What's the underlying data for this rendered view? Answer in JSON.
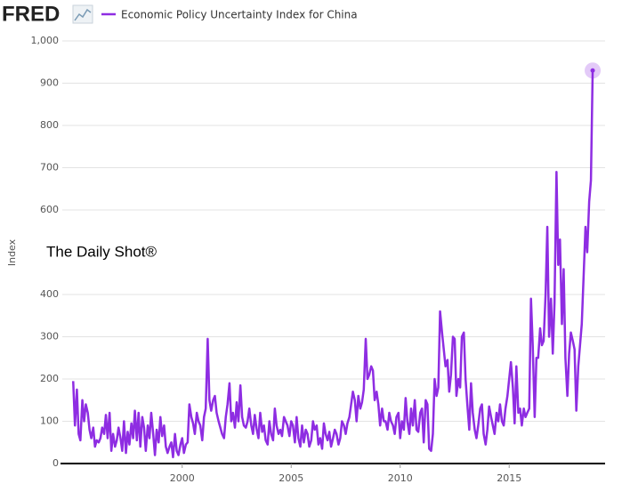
{
  "logo": "FRED",
  "chart_data": {
    "type": "line",
    "watermark": "The Daily Shot®",
    "ylabel": "Index",
    "series": [
      {
        "name": "Economic Policy Uncertainty Index for China",
        "color": "#8e2de2",
        "values": [
          195,
          90,
          175,
          70,
          55,
          150,
          100,
          140,
          120,
          80,
          60,
          85,
          40,
          55,
          50,
          60,
          85,
          70,
          115,
          60,
          120,
          30,
          70,
          40,
          55,
          85,
          60,
          30,
          100,
          25,
          75,
          45,
          95,
          60,
          125,
          55,
          120,
          40,
          110,
          85,
          30,
          90,
          60,
          120,
          70,
          20,
          80,
          50,
          110,
          65,
          90,
          40,
          25,
          40,
          50,
          15,
          70,
          30,
          20,
          45,
          60,
          25,
          45,
          50,
          140,
          110,
          95,
          70,
          120,
          100,
          90,
          55,
          110,
          130,
          295,
          150,
          125,
          150,
          160,
          120,
          100,
          85,
          70,
          60,
          110,
          140,
          190,
          100,
          120,
          85,
          145,
          100,
          185,
          110,
          90,
          85,
          100,
          130,
          90,
          70,
          115,
          80,
          60,
          120,
          75,
          90,
          55,
          45,
          100,
          70,
          55,
          130,
          90,
          70,
          80,
          65,
          110,
          100,
          90,
          65,
          100,
          90,
          50,
          110,
          60,
          40,
          90,
          50,
          80,
          70,
          40,
          55,
          100,
          80,
          90,
          45,
          60,
          35,
          95,
          70,
          55,
          75,
          40,
          60,
          80,
          70,
          45,
          60,
          100,
          90,
          70,
          95,
          110,
          140,
          170,
          150,
          100,
          160,
          130,
          145,
          175,
          295,
          200,
          210,
          230,
          220,
          150,
          170,
          140,
          90,
          130,
          100,
          100,
          80,
          120,
          100,
          90,
          70,
          110,
          120,
          60,
          100,
          80,
          155,
          100,
          70,
          130,
          90,
          150,
          80,
          75,
          120,
          130,
          50,
          150,
          140,
          35,
          30,
          70,
          200,
          160,
          180,
          360,
          310,
          270,
          230,
          245,
          170,
          210,
          300,
          295,
          160,
          200,
          180,
          300,
          310,
          200,
          140,
          80,
          190,
          120,
          80,
          60,
          90,
          130,
          140,
          70,
          45,
          80,
          135,
          110,
          90,
          70,
          120,
          100,
          140,
          100,
          90,
          130,
          160,
          200,
          240,
          180,
          95,
          230,
          120,
          130,
          90,
          130,
          110,
          120,
          130,
          390,
          280,
          110,
          250,
          250,
          320,
          280,
          290,
          400,
          560,
          300,
          390,
          260,
          380,
          690,
          470,
          530,
          330,
          460,
          250,
          160,
          260,
          310,
          290,
          270,
          125,
          230,
          280,
          330,
          450,
          560,
          500,
          620,
          670,
          930
        ]
      }
    ],
    "x": [
      1995,
      1995.08,
      1995.17,
      1995.25,
      1995.33,
      1995.42,
      1995.5,
      1995.58,
      1995.67,
      1995.75,
      1995.83,
      1995.92,
      1996,
      1996.08,
      1996.17,
      1996.25,
      1996.33,
      1996.42,
      1996.5,
      1996.58,
      1996.67,
      1996.75,
      1996.83,
      1996.92,
      1997,
      1997.08,
      1997.17,
      1997.25,
      1997.33,
      1997.42,
      1997.5,
      1997.58,
      1997.67,
      1997.75,
      1997.83,
      1997.92,
      1998,
      1998.08,
      1998.17,
      1998.25,
      1998.33,
      1998.42,
      1998.5,
      1998.58,
      1998.67,
      1998.75,
      1998.83,
      1998.92,
      1999,
      1999.08,
      1999.17,
      1999.25,
      1999.33,
      1999.42,
      1999.5,
      1999.58,
      1999.67,
      1999.75,
      1999.83,
      1999.92,
      2000,
      2000.08,
      2000.17,
      2000.25,
      2000.33,
      2000.42,
      2000.5,
      2000.58,
      2000.67,
      2000.75,
      2000.83,
      2000.92,
      2001,
      2001.08,
      2001.17,
      2001.25,
      2001.33,
      2001.42,
      2001.5,
      2001.58,
      2001.67,
      2001.75,
      2001.83,
      2001.92,
      2002,
      2002.08,
      2002.17,
      2002.25,
      2002.33,
      2002.42,
      2002.5,
      2002.58,
      2002.67,
      2002.75,
      2002.83,
      2002.92,
      2003,
      2003.08,
      2003.17,
      2003.25,
      2003.33,
      2003.42,
      2003.5,
      2003.58,
      2003.67,
      2003.75,
      2003.83,
      2003.92,
      2004,
      2004.08,
      2004.17,
      2004.25,
      2004.33,
      2004.42,
      2004.5,
      2004.58,
      2004.67,
      2004.75,
      2004.83,
      2004.92,
      2005,
      2005.08,
      2005.17,
      2005.25,
      2005.33,
      2005.42,
      2005.5,
      2005.58,
      2005.67,
      2005.75,
      2005.83,
      2005.92,
      2006,
      2006.08,
      2006.17,
      2006.25,
      2006.33,
      2006.42,
      2006.5,
      2006.58,
      2006.67,
      2006.75,
      2006.83,
      2006.92,
      2007,
      2007.08,
      2007.17,
      2007.25,
      2007.33,
      2007.42,
      2007.5,
      2007.58,
      2007.67,
      2007.75,
      2007.83,
      2007.92,
      2008,
      2008.08,
      2008.17,
      2008.25,
      2008.33,
      2008.42,
      2008.5,
      2008.58,
      2008.67,
      2008.75,
      2008.83,
      2008.92,
      2009,
      2009.08,
      2009.17,
      2009.25,
      2009.33,
      2009.42,
      2009.5,
      2009.58,
      2009.67,
      2009.75,
      2009.83,
      2009.92,
      2010,
      2010.08,
      2010.17,
      2010.25,
      2010.33,
      2010.42,
      2010.5,
      2010.58,
      2010.67,
      2010.75,
      2010.83,
      2010.92,
      2011,
      2011.08,
      2011.17,
      2011.25,
      2011.33,
      2011.42,
      2011.5,
      2011.58,
      2011.67,
      2011.75,
      2011.83,
      2011.92,
      2012,
      2012.08,
      2012.17,
      2012.25,
      2012.33,
      2012.42,
      2012.5,
      2012.58,
      2012.67,
      2012.75,
      2012.83,
      2012.92,
      2013,
      2013.08,
      2013.17,
      2013.25,
      2013.33,
      2013.42,
      2013.5,
      2013.58,
      2013.67,
      2013.75,
      2013.83,
      2013.92,
      2014,
      2014.08,
      2014.17,
      2014.25,
      2014.33,
      2014.42,
      2014.5,
      2014.58,
      2014.67,
      2014.75,
      2014.83,
      2014.92,
      2015,
      2015.08,
      2015.17,
      2015.25,
      2015.33,
      2015.42,
      2015.5,
      2015.58,
      2015.67,
      2015.75,
      2015.83,
      2015.92,
      2016,
      2016.08,
      2016.17,
      2016.25,
      2016.33,
      2016.42,
      2016.5,
      2016.58,
      2016.67,
      2016.75,
      2016.83,
      2016.92,
      2017,
      2017.08,
      2017.17,
      2017.25,
      2017.33,
      2017.42,
      2017.5,
      2017.58,
      2017.67,
      2017.75,
      2017.83,
      2017.92,
      2018,
      2018.08,
      2018.17,
      2018.25,
      2018.33,
      2018.42,
      2018.5,
      2018.58,
      2018.67,
      2018.75,
      2018.83
    ],
    "xlim": [
      1994.5,
      2019.4
    ],
    "xticks": [
      2000,
      2005,
      2010,
      2015
    ],
    "ylim": [
      0,
      1000
    ],
    "yticks": [
      0,
      100,
      200,
      300,
      400,
      600,
      700,
      800,
      900,
      {
        "value": 1000,
        "label": "1,000"
      }
    ],
    "grid": true,
    "highlight_last": true
  }
}
